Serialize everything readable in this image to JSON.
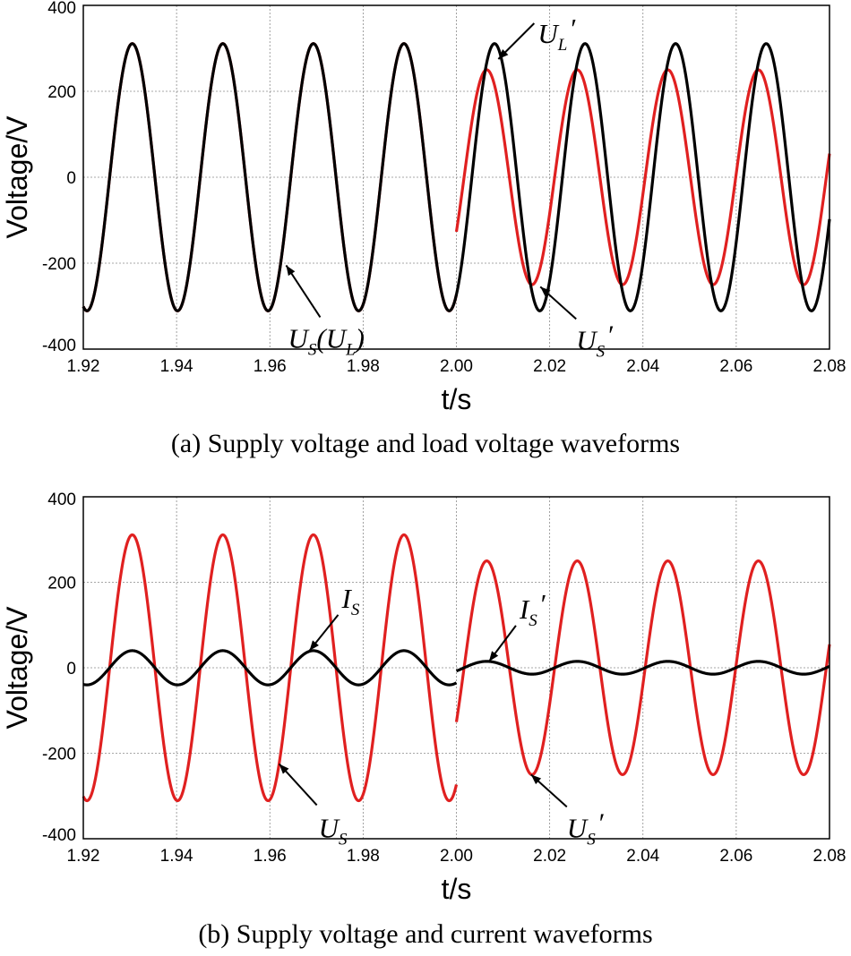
{
  "chart_data": [
    {
      "type": "line",
      "id": "a",
      "caption": "(a) Supply voltage and load voltage waveforms",
      "xlabel": "t/s",
      "ylabel": "Voltage/V",
      "xlim": [
        1.92,
        2.08
      ],
      "ylim": [
        -400,
        400
      ],
      "xticks": [
        "1.92",
        "1.94",
        "1.96",
        "1.98",
        "2.00",
        "2.02",
        "2.04",
        "2.06",
        "2.08"
      ],
      "yticks": [
        "400",
        "200",
        "0",
        "-200",
        "-400"
      ],
      "grid": true,
      "series": [
        {
          "name": "U_S'",
          "color": "#e02020",
          "segments": [
            {
              "t_start": 1.92,
              "t_end": 2.0,
              "amplitude": 311,
              "freq_hz": 51.5,
              "t_peak": 1.9305
            },
            {
              "t_start": 2.0,
              "t_end": 2.08,
              "amplitude": 250,
              "freq_hz": 51.5,
              "t_peak": 2.0065
            }
          ]
        },
        {
          "name": "U_S (U_L) / U_L'",
          "color": "#000000",
          "segments": [
            {
              "t_start": 1.92,
              "t_end": 2.08,
              "amplitude": 311,
              "freq_hz": 51.5,
              "t_peak": 1.9305
            }
          ]
        }
      ],
      "annotations": [
        {
          "main": "U",
          "sub": "S",
          "tail": "(",
          "main2": "U",
          "sub2": "L",
          "tail2": ")",
          "prime": "",
          "x": 1.9635,
          "y": -205
        },
        {
          "main": "U",
          "sub": "L",
          "prime": "′",
          "x": 2.009,
          "y": 275
        },
        {
          "main": "U",
          "sub": "S",
          "prime": "′",
          "x": 2.018,
          "y": -255
        }
      ]
    },
    {
      "type": "line",
      "id": "b",
      "caption": "(b) Supply voltage and current waveforms",
      "xlabel": "t/s",
      "ylabel": "Voltage/V",
      "xlim": [
        1.92,
        2.08
      ],
      "ylim": [
        -400,
        400
      ],
      "xticks": [
        "1.92",
        "1.94",
        "1.96",
        "1.98",
        "2.00",
        "2.02",
        "2.04",
        "2.06",
        "2.08"
      ],
      "yticks": [
        "400",
        "200",
        "0",
        "-200",
        "-400"
      ],
      "grid": true,
      "series": [
        {
          "name": "U_S",
          "color": "#e02020",
          "segments": [
            {
              "t_start": 1.92,
              "t_end": 2.0,
              "amplitude": 311,
              "freq_hz": 51.5,
              "t_peak": 1.9305
            },
            {
              "t_start": 2.0,
              "t_end": 2.08,
              "amplitude": 250,
              "freq_hz": 51.5,
              "t_peak": 2.0065
            }
          ]
        },
        {
          "name": "I_S",
          "color": "#000000",
          "segments": [
            {
              "t_start": 1.92,
              "t_end": 2.0,
              "amplitude": 40,
              "freq_hz": 51.5,
              "t_peak": 1.9305
            },
            {
              "t_start": 2.0,
              "t_end": 2.08,
              "amplitude": 15,
              "freq_hz": 51.5,
              "t_peak": 2.0065
            }
          ]
        }
      ],
      "annotations": [
        {
          "main": "U",
          "sub": "S",
          "prime": "",
          "x": 1.962,
          "y": -225
        },
        {
          "main": "I",
          "sub": "S",
          "prime": "",
          "x": 1.9685,
          "y": 40
        },
        {
          "main": "I",
          "sub": "S",
          "prime": "′",
          "x": 2.007,
          "y": 15
        },
        {
          "main": "U",
          "sub": "S",
          "prime": "′",
          "x": 2.016,
          "y": -250
        }
      ]
    }
  ]
}
